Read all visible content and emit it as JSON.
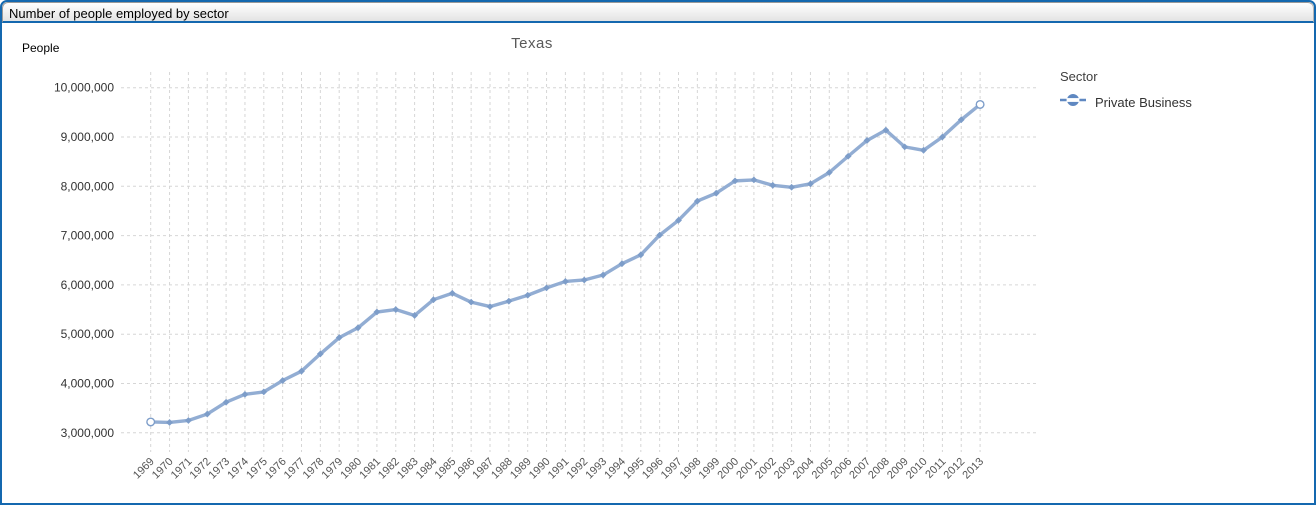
{
  "window": {
    "title": "Number of people employed by sector"
  },
  "chart": {
    "title": "Texas",
    "y_axis_title": "People",
    "legend": {
      "title": "Sector",
      "items": [
        {
          "label": "Private Business"
        }
      ]
    }
  },
  "colors": {
    "accent_border": "#1468af",
    "line": "#92add3",
    "marker": "#7d9dc9",
    "legend_marker": "#5f88c1",
    "gridline": "#d6d6d6"
  },
  "chart_data": {
    "type": "line",
    "title": "Texas",
    "xlabel": "",
    "ylabel": "People",
    "x": [
      1969,
      1970,
      1971,
      1972,
      1973,
      1974,
      1975,
      1976,
      1977,
      1978,
      1979,
      1980,
      1981,
      1982,
      1983,
      1984,
      1985,
      1986,
      1987,
      1988,
      1989,
      1990,
      1991,
      1992,
      1993,
      1994,
      1995,
      1996,
      1997,
      1998,
      1999,
      2000,
      2001,
      2002,
      2003,
      2004,
      2005,
      2006,
      2007,
      2008,
      2009,
      2010,
      2011,
      2012,
      2013
    ],
    "series": [
      {
        "name": "Private Business",
        "values": [
          3220000,
          3210000,
          3250000,
          3380000,
          3620000,
          3780000,
          3830000,
          4060000,
          4250000,
          4600000,
          4930000,
          5130000,
          5450000,
          5500000,
          5380000,
          5700000,
          5830000,
          5650000,
          5560000,
          5670000,
          5790000,
          5940000,
          6070000,
          6100000,
          6200000,
          6430000,
          6610000,
          7010000,
          7310000,
          7700000,
          7860000,
          8110000,
          8130000,
          8020000,
          7980000,
          8050000,
          8280000,
          8610000,
          8930000,
          9140000,
          8800000,
          8730000,
          9000000,
          9350000,
          9660000
        ]
      }
    ],
    "ylim": [
      3000000,
      10000000
    ],
    "ytick_interval": 1000000,
    "grid": true,
    "legend_position": "right"
  }
}
